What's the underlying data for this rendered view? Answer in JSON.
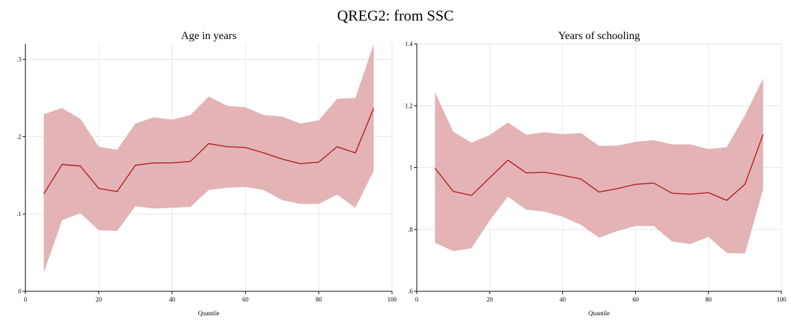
{
  "title": "QREG2: from SSC",
  "colors": {
    "band": "#e3b3b5",
    "line": "#b2181b",
    "grid": "#e6e6e6"
  },
  "chart_data": [
    {
      "type": "area",
      "title": "Age in years",
      "xlabel": "Quantile",
      "ylabel": "",
      "xlim": [
        0,
        100
      ],
      "ylim": [
        0,
        0.32
      ],
      "x_ticks": [
        0,
        20,
        40,
        60,
        80,
        100
      ],
      "x_tick_labels": [
        "0",
        "20",
        "40",
        "60",
        "80",
        "100"
      ],
      "y_ticks": [
        0,
        0.1,
        0.2,
        0.3
      ],
      "y_tick_labels": [
        "0",
        ".1",
        ".2",
        ".3"
      ],
      "grid": true,
      "x": [
        5,
        10,
        15,
        20,
        25,
        30,
        35,
        40,
        45,
        50,
        55,
        60,
        65,
        70,
        75,
        80,
        85,
        90,
        95
      ],
      "series": [
        {
          "values": [
            0.126,
            0.164,
            0.162,
            0.133,
            0.129,
            0.163,
            0.166,
            0.166,
            0.168,
            0.191,
            0.187,
            0.186,
            0.179,
            0.171,
            0.165,
            0.167,
            0.187,
            0.179,
            0.237
          ]
        }
      ],
      "ci_lower": [
        0.024,
        0.092,
        0.101,
        0.079,
        0.078,
        0.11,
        0.107,
        0.108,
        0.109,
        0.131,
        0.134,
        0.135,
        0.131,
        0.118,
        0.113,
        0.113,
        0.125,
        0.108,
        0.156
      ],
      "ci_upper": [
        0.229,
        0.237,
        0.223,
        0.187,
        0.183,
        0.217,
        0.225,
        0.222,
        0.228,
        0.252,
        0.24,
        0.238,
        0.228,
        0.226,
        0.217,
        0.221,
        0.249,
        0.25,
        0.32
      ]
    },
    {
      "type": "area",
      "title": "Years of schooling",
      "xlabel": "Quantile",
      "ylabel": "",
      "xlim": [
        0,
        100
      ],
      "ylim": [
        0.6,
        1.4
      ],
      "x_ticks": [
        0,
        20,
        40,
        60,
        80,
        100
      ],
      "x_tick_labels": [
        "0",
        "20",
        "40",
        "60",
        "80",
        "100"
      ],
      "y_ticks": [
        0.6,
        0.8,
        1.0,
        1.2,
        1.4
      ],
      "y_tick_labels": [
        ".6",
        ".8",
        "1",
        "1.2",
        "1.4"
      ],
      "grid": true,
      "x": [
        5,
        10,
        15,
        20,
        25,
        30,
        35,
        40,
        45,
        50,
        55,
        60,
        65,
        70,
        75,
        80,
        85,
        90,
        95
      ],
      "series": [
        {
          "values": [
            0.998,
            0.923,
            0.91,
            0.967,
            1.024,
            0.983,
            0.985,
            0.975,
            0.963,
            0.921,
            0.932,
            0.946,
            0.95,
            0.917,
            0.914,
            0.919,
            0.894,
            0.946,
            1.108
          ]
        }
      ],
      "ci_lower": [
        0.757,
        0.73,
        0.739,
        0.829,
        0.906,
        0.864,
        0.858,
        0.841,
        0.815,
        0.773,
        0.795,
        0.811,
        0.811,
        0.761,
        0.753,
        0.776,
        0.724,
        0.722,
        0.93
      ],
      "ci_upper": [
        1.243,
        1.116,
        1.081,
        1.105,
        1.146,
        1.106,
        1.114,
        1.108,
        1.112,
        1.07,
        1.071,
        1.083,
        1.089,
        1.075,
        1.075,
        1.06,
        1.066,
        1.169,
        1.288
      ]
    }
  ]
}
